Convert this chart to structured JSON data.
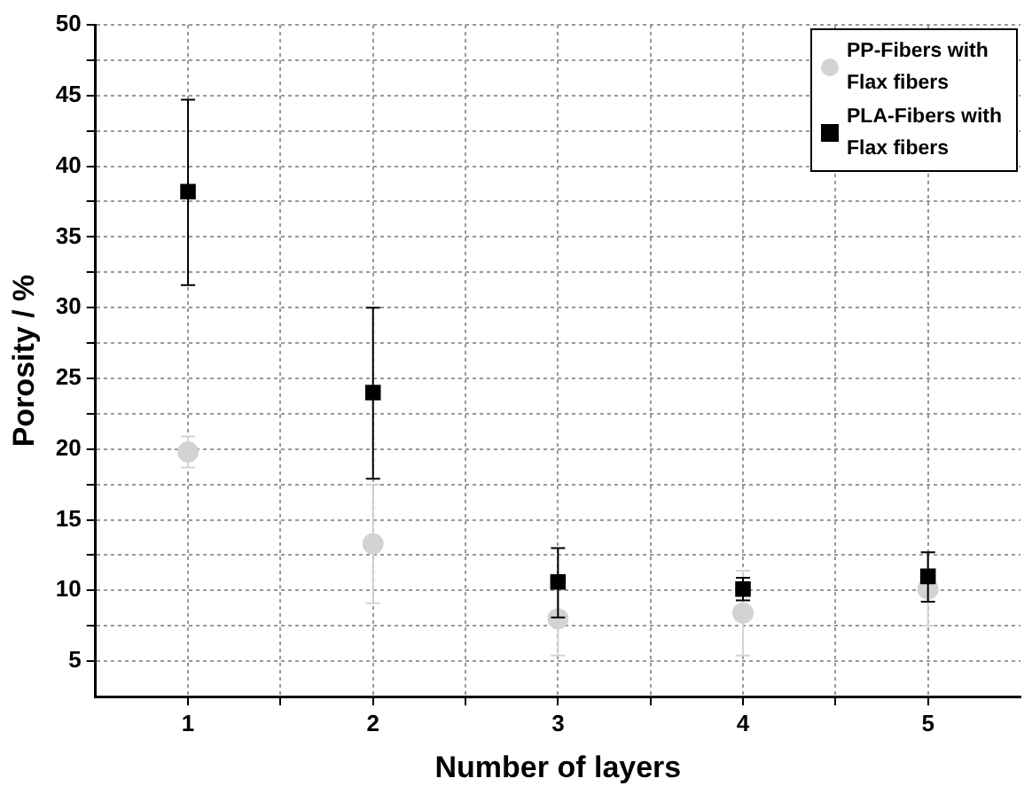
{
  "chart_data": {
    "type": "scatter",
    "xlabel": "Number of layers",
    "ylabel": "Porosity / %",
    "xlim": [
      0.5,
      5.5
    ],
    "ylim": [
      2.5,
      50
    ],
    "xticks": [
      1,
      {
        "value": 1.5,
        "label": null
      },
      2,
      {
        "value": 2.5,
        "label": null
      },
      3,
      {
        "value": 3.5,
        "label": null
      },
      4,
      {
        "value": 4.5,
        "label": null
      },
      5
    ],
    "yticks": [
      5,
      {
        "value": 7.5,
        "label": null
      },
      10,
      {
        "value": 12.5,
        "label": null
      },
      15,
      {
        "value": 17.5,
        "label": null
      },
      20,
      {
        "value": 22.5,
        "label": null
      },
      25,
      {
        "value": 27.5,
        "label": null
      },
      30,
      {
        "value": 32.5,
        "label": null
      },
      35,
      {
        "value": 37.5,
        "label": null
      },
      40,
      {
        "value": 42.5,
        "label": null
      },
      45,
      {
        "value": 47.5,
        "label": null
      },
      50
    ],
    "grid": true,
    "legend": "top right",
    "series": [
      {
        "name": "PP-Fibers with Flax fibers",
        "color": "#d3d3d3",
        "marker": "circle",
        "x": [
          1,
          2,
          3,
          4,
          5
        ],
        "values": [
          19.8,
          13.3,
          8.0,
          8.4,
          10.1
        ],
        "errors": [
          1.1,
          4.2,
          2.6,
          3.0,
          2.6
        ]
      },
      {
        "name": "PLA-Fibers with Flax fibers",
        "color": "#000000",
        "marker": "square",
        "x": [
          1,
          2,
          3,
          4,
          5
        ],
        "values": [
          38.2,
          24.0,
          10.6,
          10.1,
          11.0
        ],
        "errors": [
          [
            31.6,
            44.7
          ],
          [
            17.9,
            30.0
          ],
          [
            8.1,
            13.0
          ],
          [
            9.3,
            10.9
          ],
          [
            9.2,
            12.7
          ]
        ]
      }
    ]
  }
}
